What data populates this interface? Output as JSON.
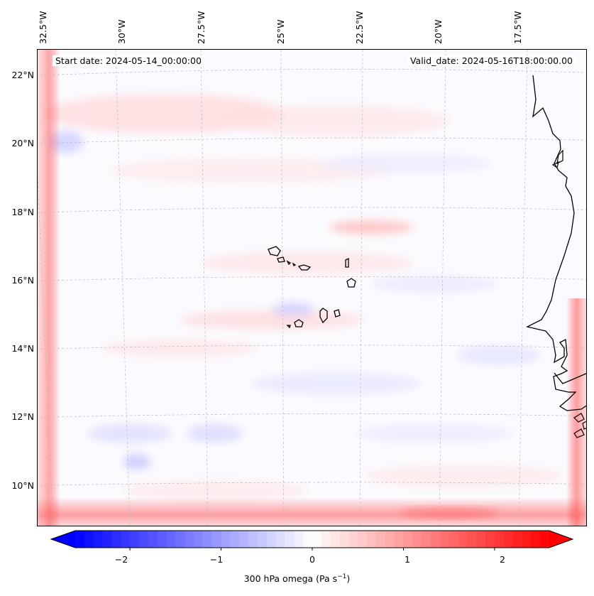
{
  "header": {
    "start_date": "Start date: 2024-05-14_00:00:00",
    "valid_date": "Valid_date: 2024-05-16T18:00:00.00"
  },
  "longitude_labels": [
    "32.5°W",
    "30°W",
    "27.5°W",
    "25°W",
    "22.5°W",
    "20°W",
    "17.5°W"
  ],
  "latitude_labels": [
    "22°N",
    "20°N",
    "18°N",
    "16°N",
    "14°N",
    "12°N",
    "10°N"
  ],
  "colorbar": {
    "ticks": [
      "−2",
      "−1",
      "0",
      "1",
      "2"
    ],
    "min": -2.6,
    "max": 2.6,
    "label_prefix": "300 hPa omega (Pa s",
    "label_exp": "−1",
    "label_suffix": ")",
    "low_color": "#0000ff",
    "mid_color": "#ffffff",
    "high_color": "#ff0000"
  },
  "map": {
    "field": "300 hPa omega",
    "region": "Cape Verde / West Africa"
  }
}
